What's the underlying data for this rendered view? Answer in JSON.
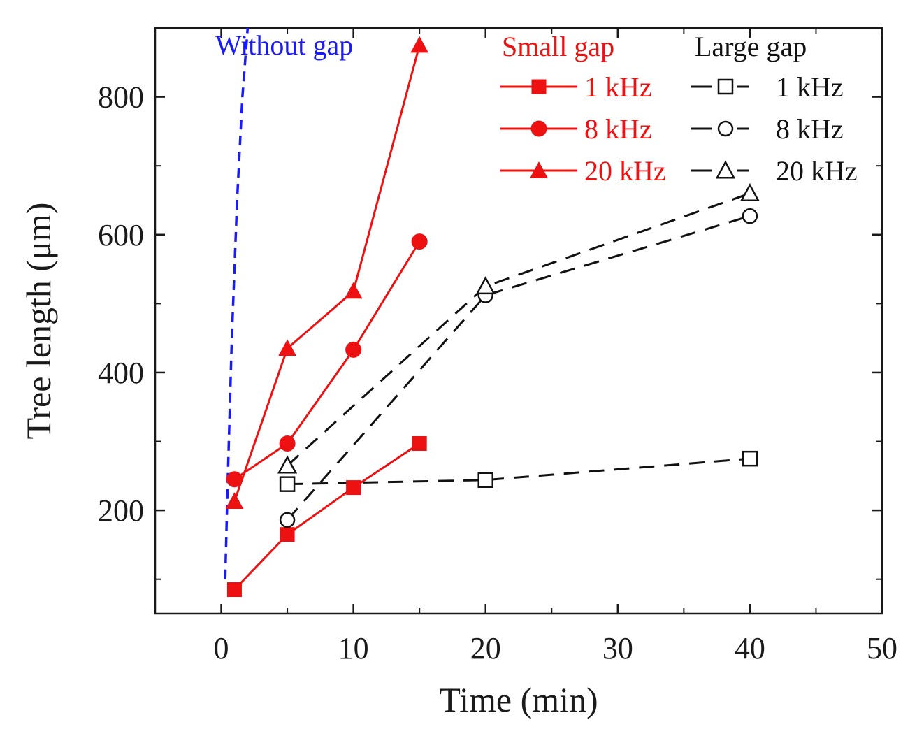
{
  "chart_data": {
    "type": "line",
    "xlabel": "Time (min)",
    "ylabel": "Tree length (μm)",
    "xlim": [
      -5,
      50
    ],
    "ylim": [
      50,
      900
    ],
    "x_ticks": [
      0,
      10,
      20,
      30,
      40,
      50
    ],
    "y_ticks": [
      200,
      400,
      600,
      800
    ],
    "annotation": {
      "text": "Without gap",
      "color": "#1a1aff"
    },
    "without_gap_curve": {
      "name": "Without gap",
      "color": "#1a1aff",
      "x": [
        0.3,
        0.5,
        0.8,
        1.2,
        1.6,
        2.0
      ],
      "y": [
        100,
        250,
        450,
        650,
        800,
        900
      ]
    },
    "legend": {
      "small_gap_title": "Small gap",
      "large_gap_title": "Large gap",
      "small_labels": [
        "1 kHz",
        "8 kHz",
        "20 kHz"
      ],
      "large_labels": [
        "1 kHz",
        "8 kHz",
        "20 kHz"
      ]
    },
    "series": [
      {
        "name": "1 kHz",
        "group": "Small gap",
        "marker": "square",
        "filled": true,
        "dashed": false,
        "color": "#ee1111",
        "x": [
          1,
          5,
          10,
          15
        ],
        "y": [
          85,
          165,
          233,
          297
        ]
      },
      {
        "name": "8 kHz",
        "group": "Small gap",
        "marker": "circle",
        "filled": true,
        "dashed": false,
        "color": "#ee1111",
        "x": [
          1,
          5,
          10,
          15
        ],
        "y": [
          245,
          297,
          433,
          590
        ]
      },
      {
        "name": "20 kHz",
        "group": "Small gap",
        "marker": "triangle",
        "filled": true,
        "dashed": false,
        "color": "#ee1111",
        "x": [
          1,
          5,
          10,
          15
        ],
        "y": [
          213,
          435,
          518,
          875
        ]
      },
      {
        "name": "1 kHz",
        "group": "Large gap",
        "marker": "square",
        "filled": false,
        "dashed": true,
        "color": "#111111",
        "x": [
          5,
          20,
          40
        ],
        "y": [
          238,
          244,
          275
        ]
      },
      {
        "name": "8 kHz",
        "group": "Large gap",
        "marker": "circle",
        "filled": false,
        "dashed": true,
        "color": "#111111",
        "x": [
          5,
          20,
          40
        ],
        "y": [
          186,
          512,
          627
        ]
      },
      {
        "name": "20 kHz",
        "group": "Large gap",
        "marker": "triangle",
        "filled": false,
        "dashed": true,
        "color": "#111111",
        "x": [
          5,
          20,
          40
        ],
        "y": [
          265,
          525,
          660
        ]
      }
    ]
  }
}
